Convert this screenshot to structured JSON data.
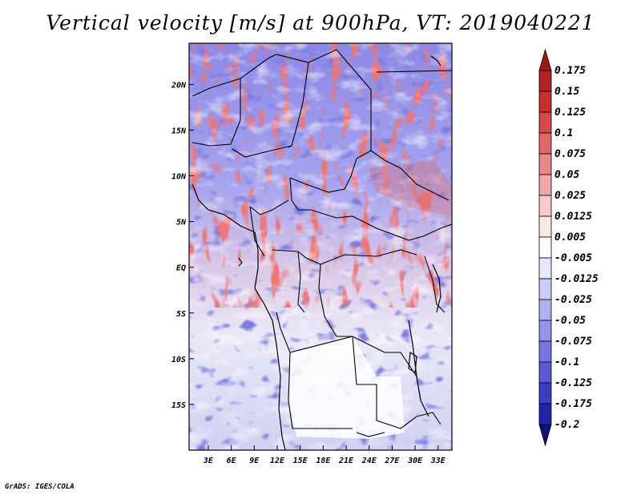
{
  "title": "Vertical velocity [m/s] at 900hPa, VT: 2019040221",
  "credit": "GrADS: IGES/COLA",
  "lat_ticks": [
    {
      "value": 20,
      "label": "20N"
    },
    {
      "value": 15,
      "label": "15N"
    },
    {
      "value": 10,
      "label": "10N"
    },
    {
      "value": 5,
      "label": "5N"
    },
    {
      "value": 0,
      "label": "EQ"
    },
    {
      "value": -5,
      "label": "5S"
    },
    {
      "value": -10,
      "label": "10S"
    },
    {
      "value": -15,
      "label": "15S"
    }
  ],
  "lon_ticks": [
    {
      "value": 3,
      "label": "3E"
    },
    {
      "value": 6,
      "label": "6E"
    },
    {
      "value": 9,
      "label": "9E"
    },
    {
      "value": 12,
      "label": "12E"
    },
    {
      "value": 15,
      "label": "15E"
    },
    {
      "value": 18,
      "label": "18E"
    },
    {
      "value": 21,
      "label": "21E"
    },
    {
      "value": 24,
      "label": "24E"
    },
    {
      "value": 27,
      "label": "27E"
    },
    {
      "value": 30,
      "label": "30E"
    },
    {
      "value": 33,
      "label": "33E"
    }
  ],
  "lat_range": [
    -20,
    24.5
  ],
  "lon_range": [
    0.5,
    34.8
  ],
  "colorbar": {
    "levels": [
      "0.175",
      "0.15",
      "0.125",
      "0.1",
      "0.075",
      "0.05",
      "0.025",
      "0.0125",
      "0.005",
      "-0.005",
      "-0.0125",
      "-0.025",
      "-0.05",
      "-0.075",
      "-0.1",
      "-0.125",
      "-0.175",
      "-0.2"
    ],
    "colors": [
      "#a01818",
      "#b52020",
      "#c83030",
      "#d84848",
      "#e06868",
      "#e88888",
      "#f0a8a8",
      "#f8caca",
      "#fde8e8",
      "#ffffff",
      "#e8e8fc",
      "#ccccf8",
      "#b0b0f2",
      "#9494ec",
      "#7777e2",
      "#5a5ad6",
      "#3c3cc4",
      "#2222aa",
      "#140e80"
    ]
  }
}
